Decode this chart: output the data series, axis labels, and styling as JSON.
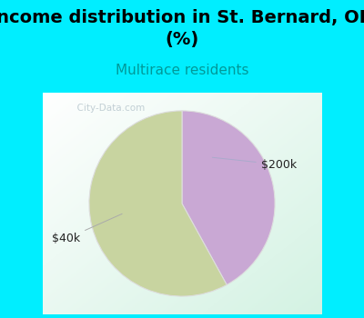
{
  "title": "Income distribution in St. Bernard, OH\n(%)",
  "subtitle": "Multirace residents",
  "slices": [
    42.0,
    58.0
  ],
  "labels": [
    "$200k",
    "$40k"
  ],
  "colors": [
    "#c9a8d4",
    "#c8d4a0"
  ],
  "background_color": "#00eeff",
  "title_fontsize": 14,
  "subtitle_fontsize": 11,
  "subtitle_color": "#009999",
  "label_fontsize": 9,
  "label_color": "#222222",
  "watermark": "  City-Data.com",
  "startangle": 90,
  "wedge_edge_color": "#dddddd"
}
